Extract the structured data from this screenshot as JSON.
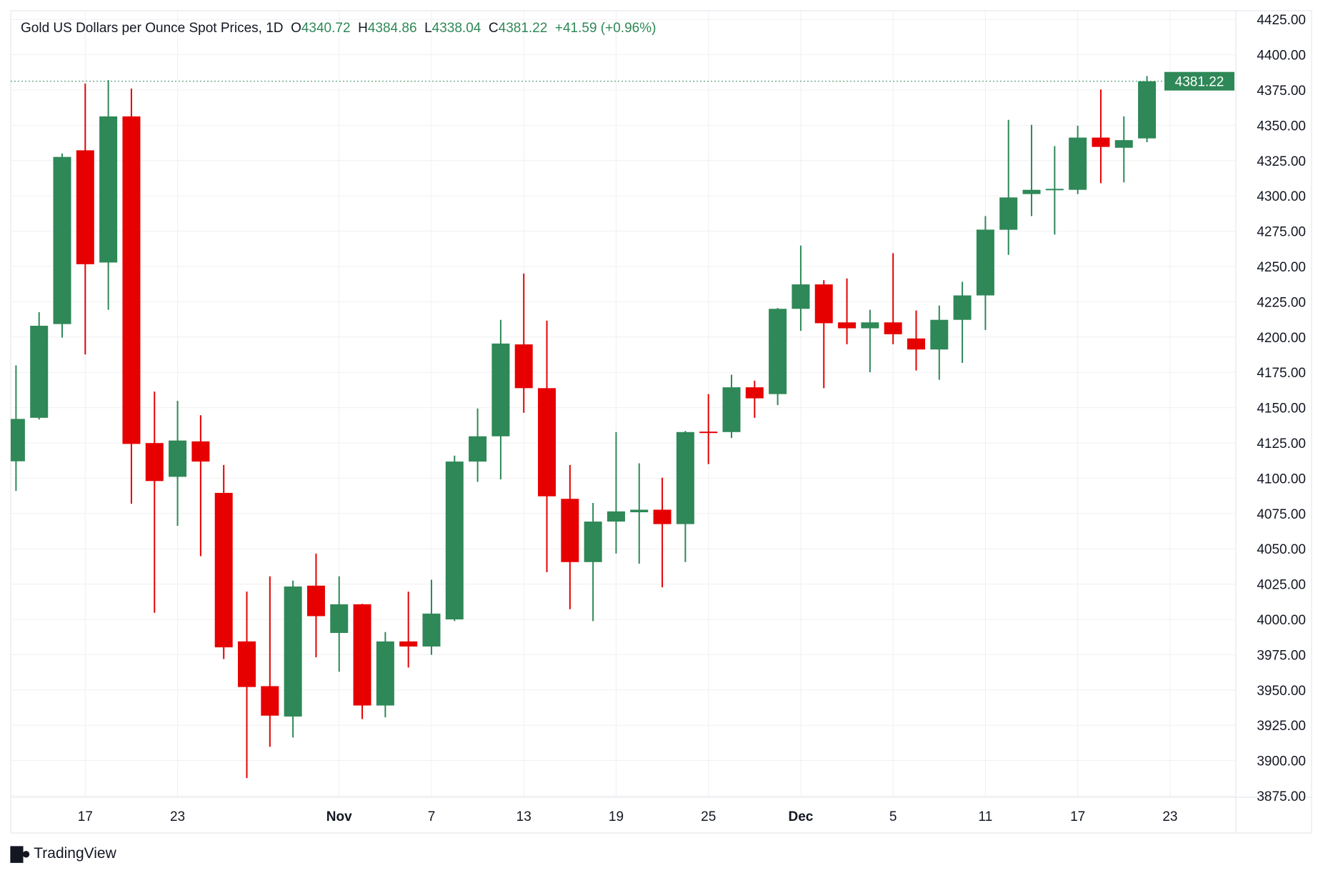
{
  "header": {
    "title": "Gold US Dollars per Ounce Spot Prices, 1D",
    "o_label": "O",
    "o_value": "4340.72",
    "h_label": "H",
    "h_value": "4384.86",
    "l_label": "L",
    "l_value": "4338.04",
    "c_label": "C",
    "c_value": "4381.22",
    "change": "+41.59 (+0.96%)"
  },
  "footer": {
    "brand": "TradingView",
    "brand_mark": "17"
  },
  "colors": {
    "up": "#2e8857",
    "down": "#e60000",
    "grid": "#f0f0f3",
    "text": "#131722"
  },
  "chart_data": {
    "type": "candlestick",
    "title": "Gold US Dollars per Ounce Spot Prices, 1D",
    "ylim": [
      3875,
      4425
    ],
    "y_ticks": [
      "4425.00",
      "4400.00",
      "4375.00",
      "4350.00",
      "4325.00",
      "4300.00",
      "4275.00",
      "4250.00",
      "4225.00",
      "4200.00",
      "4175.00",
      "4150.00",
      "4125.00",
      "4100.00",
      "4075.00",
      "4050.00",
      "4025.00",
      "4000.00",
      "3975.00",
      "3950.00",
      "3925.00",
      "3900.00",
      "3875.00"
    ],
    "x_ticks": [
      {
        "label": "17",
        "index": 3,
        "bold": false
      },
      {
        "label": "23",
        "index": 7,
        "bold": false
      },
      {
        "label": "Nov",
        "index": 14,
        "bold": true
      },
      {
        "label": "7",
        "index": 18,
        "bold": false
      },
      {
        "label": "13",
        "index": 22,
        "bold": false
      },
      {
        "label": "19",
        "index": 26,
        "bold": false
      },
      {
        "label": "25",
        "index": 30,
        "bold": false
      },
      {
        "label": "Dec",
        "index": 34,
        "bold": true
      },
      {
        "label": "5",
        "index": 38,
        "bold": false
      },
      {
        "label": "11",
        "index": 42,
        "bold": false
      },
      {
        "label": "17",
        "index": 46,
        "bold": false
      },
      {
        "label": "23",
        "index": 50,
        "bold": false
      }
    ],
    "last_price_label": "4381.22",
    "last_price": 4381.22,
    "ohlc": [
      [
        4112,
        4180,
        4091,
        4142
      ],
      [
        4142.8,
        4217.6,
        4141.6,
        4208
      ],
      [
        4209.2,
        4330,
        4199.6,
        4327.6
      ],
      [
        4332.3,
        4379.6,
        4187.7,
        4251.6
      ],
      [
        4252.8,
        4382,
        4219.3,
        4356.3
      ],
      [
        4356.3,
        4376,
        4081.9,
        4124.3
      ],
      [
        4124.9,
        4161.4,
        4004.7,
        4098
      ],
      [
        4101,
        4154.8,
        4066.3,
        4126.7
      ],
      [
        4126.1,
        4144.6,
        4044.8,
        4111.8
      ],
      [
        4089.6,
        4109.4,
        3971.9,
        3980.2
      ],
      [
        3984.4,
        4019.7,
        3887.6,
        3952.1
      ],
      [
        3952.7,
        4030.5,
        3909.7,
        3931.8
      ],
      [
        3931.2,
        4027.5,
        3916.3,
        4023.3
      ],
      [
        4023.9,
        4046.6,
        3973.1,
        4002.3
      ],
      [
        3990.4,
        4030.5,
        3962.9,
        4010.7
      ],
      [
        4010.7,
        4011,
        3929.4,
        3939
      ],
      [
        3939,
        3991,
        3930.6,
        3984.4
      ],
      [
        3984.4,
        4019.7,
        3965.9,
        3980.8
      ],
      [
        3980.8,
        4028.1,
        3974.9,
        4004.1
      ],
      [
        4000,
        4116,
        3998.8,
        4111.8
      ],
      [
        4111.8,
        4149.4,
        4097.4,
        4129.7
      ],
      [
        4129.7,
        4212.2,
        4099.2,
        4195.4
      ],
      [
        4194.8,
        4245,
        4146.4,
        4163.8
      ],
      [
        4163.8,
        4211.6,
        4033.4,
        4087.2
      ],
      [
        4085.4,
        4109.4,
        4007.2,
        4040.6
      ],
      [
        4040.6,
        4082.5,
        3998.8,
        4069.3
      ],
      [
        4069.3,
        4132.7,
        4046.6,
        4076.5
      ],
      [
        4075.9,
        4110.6,
        4039.4,
        4077.7
      ],
      [
        4077.7,
        4100.4,
        4022.7,
        4067.5
      ],
      [
        4067.5,
        4133.5,
        4040.6,
        4132.7
      ],
      [
        4133,
        4159.6,
        4110,
        4132.5
      ],
      [
        4132.7,
        4173.3,
        4128.5,
        4164.4
      ],
      [
        4164.4,
        4169.1,
        4142.8,
        4156.6
      ],
      [
        4159.6,
        4220.6,
        4151.8,
        4220
      ],
      [
        4220,
        4264.8,
        4204.4,
        4237.3
      ],
      [
        4237.3,
        4240.3,
        4163.8,
        4209.8
      ],
      [
        4210.4,
        4241.5,
        4194.9,
        4206.2
      ],
      [
        4206.2,
        4219.3,
        4175.1,
        4210.4
      ],
      [
        4210.4,
        4259.4,
        4194.9,
        4202
      ],
      [
        4199,
        4218.8,
        4176.3,
        4191.2
      ],
      [
        4191.2,
        4222.3,
        4169.7,
        4212.2
      ],
      [
        4212.2,
        4239.1,
        4181.7,
        4229.5
      ],
      [
        4229.5,
        4285.7,
        4205,
        4276.1
      ],
      [
        4276,
        4353.9,
        4258.2,
        4298.9
      ],
      [
        4301.3,
        4350.3,
        4285.7,
        4304.3
      ],
      [
        4304.5,
        4335.3,
        4272.6,
        4305
      ],
      [
        4304.3,
        4349.7,
        4301.3,
        4341.3
      ],
      [
        4341.3,
        4375.4,
        4309,
        4334.7
      ],
      [
        4334.1,
        4356.3,
        4309.6,
        4339.5
      ],
      [
        4340.72,
        4384.86,
        4338.04,
        4381.22
      ]
    ]
  }
}
